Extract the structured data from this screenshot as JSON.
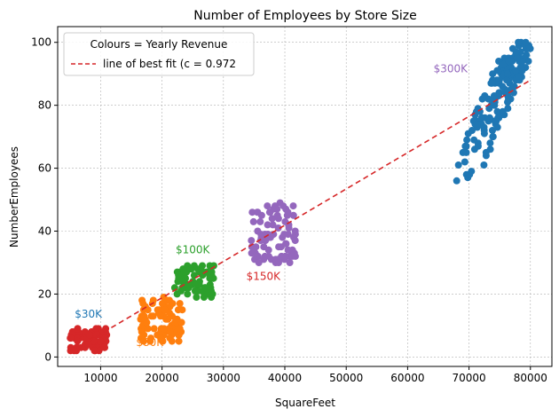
{
  "chart_data": {
    "type": "scatter",
    "title": "Number of Employees by Store Size",
    "xlabel": "SquareFeet",
    "ylabel": "NumberEmployees",
    "xlim": [
      3000,
      83500
    ],
    "ylim": [
      -3,
      105
    ],
    "xticks": [
      10000,
      20000,
      30000,
      40000,
      50000,
      60000,
      70000,
      80000
    ],
    "xtick_labels": [
      "10000",
      "20000",
      "30000",
      "40000",
      "50000",
      "60000",
      "70000",
      "80000"
    ],
    "yticks": [
      0,
      20,
      40,
      60,
      80,
      100
    ],
    "ytick_labels": [
      "0",
      "20",
      "40",
      "60",
      "80",
      "100"
    ],
    "grid": true,
    "legend": {
      "position": "top-left",
      "title": "Colours = Yearly Revenue",
      "entries": [
        {
          "label": "line of best fit (c = 0.972",
          "style": "dashed",
          "color": "#d62728"
        }
      ]
    },
    "best_fit_line": {
      "x": [
        8000,
        80000
      ],
      "y": [
        5,
        88
      ],
      "color": "#d62728"
    },
    "groups": [
      {
        "label": "$30K",
        "color": "#d62728",
        "label_color": "#1f77b4",
        "label_pos": [
          8000,
          12.5
        ],
        "x_range": [
          5000,
          11000
        ],
        "y_range": [
          2,
          9
        ]
      },
      {
        "label": "$80K",
        "color": "#ff7f0e",
        "label_color": "#ff7f0e",
        "label_pos": [
          18000,
          3.5
        ],
        "x_range": [
          16500,
          23500
        ],
        "y_range": [
          5,
          19
        ]
      },
      {
        "label": "$100K",
        "color": "#2ca02c",
        "label_color": "#2ca02c",
        "label_pos": [
          25000,
          33
        ],
        "x_range": [
          22000,
          28500
        ],
        "y_range": [
          19,
          29
        ]
      },
      {
        "label": "$150K",
        "color": "#9467bd",
        "label_color": "#d62728",
        "label_pos": [
          36500,
          24.5
        ],
        "x_range": [
          34500,
          42000
        ],
        "y_range": [
          30,
          49
        ]
      },
      {
        "label": "$300K",
        "color": "#1f77b4",
        "label_color": "#9467bd",
        "label_pos": [
          67000,
          90.5
        ],
        "x_range": [
          68000,
          80000
        ],
        "y_range": [
          52,
          100
        ]
      }
    ]
  }
}
